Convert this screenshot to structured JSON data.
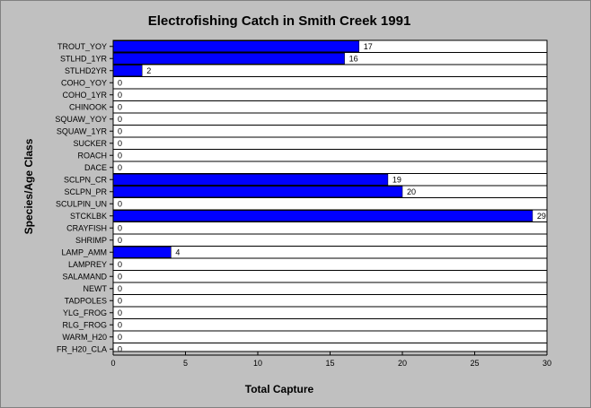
{
  "chart_data": {
    "type": "bar",
    "orientation": "horizontal",
    "title": "Electrofishing Catch in Smith Creek 1991",
    "xlabel": "Total Capture",
    "ylabel": "Species/Age Class",
    "xlim": [
      0,
      30
    ],
    "xticks": [
      0,
      5,
      10,
      15,
      20,
      25,
      30
    ],
    "grid": false,
    "bar_color": "#0000ff",
    "categories": [
      "TROUT_YOY",
      "STLHD_1YR",
      "STLHD2YR",
      "COHO_YOY",
      "COHO_1YR",
      "CHINOOK",
      "SQUAW_YOY",
      "SQUAW_1YR",
      "SUCKER",
      "ROACH",
      "DACE",
      "SCLPN_CR",
      "SCLPN_PR",
      "SCULPIN_UN",
      "STCKLBK",
      "CRAYFISH",
      "SHRIMP",
      "LAMP_AMM",
      "LAMPREY",
      "SALAMAND",
      "NEWT",
      "TADPOLES",
      "YLG_FROG",
      "RLG_FROG",
      "WARM_H20",
      "FR_H20_CLA"
    ],
    "values": [
      17,
      16,
      2,
      0,
      0,
      0,
      0,
      0,
      0,
      0,
      0,
      19,
      20,
      0,
      29,
      0,
      0,
      4,
      0,
      0,
      0,
      0,
      0,
      0,
      0,
      0
    ]
  }
}
